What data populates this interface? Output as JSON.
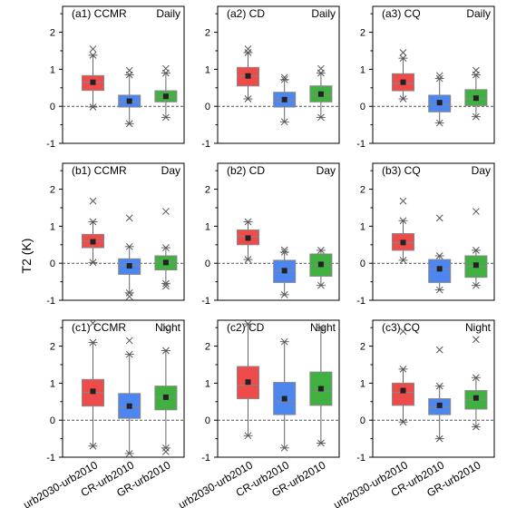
{
  "figure": {
    "ylabel": "T2 (K)",
    "categories": [
      "urb2030-urb2010",
      "CR-urb2010",
      "GR-urb2010"
    ]
  },
  "colors": {
    "urb": "#ee4b4b",
    "cr": "#4c86ee",
    "gr": "#40b040"
  },
  "chart_data": [
    {
      "type": "box",
      "panel": "(a1)",
      "region": "CCMR",
      "period": "Daily",
      "ylim": [
        -1,
        2.7
      ],
      "yticks": [
        -1,
        0,
        1,
        2
      ],
      "categories": [
        "urb2030-urb2010",
        "CR-urb2010",
        "GR-urb2010"
      ],
      "boxes": [
        {
          "min": -0.02,
          "q1": 0.43,
          "median": 0.65,
          "q3": 0.83,
          "max": 1.38,
          "mean": 0.65,
          "p1": -0.02,
          "p99": 1.38,
          "outlier_max": 1.55
        },
        {
          "min": -0.47,
          "q1": -0.02,
          "median": 0.12,
          "q3": 0.3,
          "max": 0.85,
          "mean": 0.14,
          "p1": -0.47,
          "p99": 0.85,
          "outlier_max": 0.97
        },
        {
          "min": -0.3,
          "q1": 0.12,
          "median": 0.25,
          "q3": 0.42,
          "max": 0.9,
          "mean": 0.27,
          "p1": -0.3,
          "p99": 0.9,
          "outlier_max": 1.02
        }
      ]
    },
    {
      "type": "box",
      "panel": "(a2)",
      "region": "CD",
      "period": "Daily",
      "ylim": [
        -1,
        2.7
      ],
      "yticks": [
        -1,
        0,
        1,
        2
      ],
      "categories": [
        "urb2030-urb2010",
        "CR-urb2010",
        "GR-urb2010"
      ],
      "boxes": [
        {
          "min": 0.2,
          "q1": 0.55,
          "median": 0.82,
          "q3": 1.05,
          "max": 1.45,
          "mean": 0.82,
          "p1": 0.2,
          "p99": 1.45,
          "outlier_max": 1.55
        },
        {
          "min": -0.42,
          "q1": -0.02,
          "median": 0.15,
          "q3": 0.38,
          "max": 0.72,
          "mean": 0.18,
          "p1": -0.42,
          "p99": 0.72,
          "outlier_max": 0.78
        },
        {
          "min": -0.3,
          "q1": 0.12,
          "median": 0.3,
          "q3": 0.55,
          "max": 0.9,
          "mean": 0.33,
          "p1": -0.3,
          "p99": 0.9,
          "outlier_max": 1.02
        }
      ]
    },
    {
      "type": "box",
      "panel": "(a3)",
      "region": "CQ",
      "period": "Daily",
      "ylim": [
        -1,
        2.7
      ],
      "yticks": [
        -1,
        0,
        1,
        2
      ],
      "categories": [
        "urb2030-urb2010",
        "CR-urb2010",
        "GR-urb2010"
      ],
      "boxes": [
        {
          "min": 0.2,
          "q1": 0.42,
          "median": 0.62,
          "q3": 0.88,
          "max": 1.3,
          "mean": 0.65,
          "p1": 0.2,
          "p99": 1.3,
          "outlier_max": 1.45
        },
        {
          "min": -0.45,
          "q1": -0.15,
          "median": 0.05,
          "q3": 0.3,
          "max": 0.75,
          "mean": 0.1,
          "p1": -0.45,
          "p99": 0.75,
          "outlier_max": 0.83
        },
        {
          "min": -0.28,
          "q1": 0.02,
          "median": 0.2,
          "q3": 0.45,
          "max": 0.85,
          "mean": 0.22,
          "p1": -0.28,
          "p99": 0.85,
          "outlier_max": 0.97
        }
      ]
    },
    {
      "type": "box",
      "panel": "(b1)",
      "region": "CCMR",
      "period": "Day",
      "ylim": [
        -1,
        2.7
      ],
      "yticks": [
        -1,
        0,
        1,
        2
      ],
      "categories": [
        "urb2030-urb2010",
        "CR-urb2010",
        "GR-urb2010"
      ],
      "boxes": [
        {
          "min": 0.02,
          "q1": 0.42,
          "median": 0.6,
          "q3": 0.78,
          "max": 1.12,
          "mean": 0.58,
          "p1": 0.02,
          "p99": 1.12,
          "outlier_max": 1.68
        },
        {
          "min": -0.8,
          "q1": -0.3,
          "median": -0.05,
          "q3": 0.12,
          "max": 0.45,
          "mean": -0.07,
          "p1": -0.8,
          "p99": 0.45,
          "outlier_min": -0.9,
          "outlier_max": 1.22
        },
        {
          "min": -0.55,
          "q1": -0.18,
          "median": 0.05,
          "q3": 0.2,
          "max": 0.42,
          "mean": 0.02,
          "p1": -0.55,
          "p99": 0.42,
          "outlier_min": -0.62,
          "outlier_max": 1.4
        }
      ]
    },
    {
      "type": "box",
      "panel": "(b2)",
      "region": "CD",
      "period": "Day",
      "ylim": [
        -1,
        2.7
      ],
      "yticks": [
        -1,
        0,
        1,
        2
      ],
      "categories": [
        "urb2030-urb2010",
        "CR-urb2010",
        "GR-urb2010"
      ],
      "boxes": [
        {
          "min": 0.1,
          "q1": 0.5,
          "median": 0.72,
          "q3": 0.9,
          "max": 1.12,
          "mean": 0.68,
          "p1": 0.1,
          "p99": 1.12,
          "outlier_max": 1.15
        },
        {
          "min": -0.85,
          "q1": -0.52,
          "median": -0.2,
          "q3": 0.08,
          "max": 0.3,
          "mean": -0.2,
          "p1": -0.85,
          "p99": 0.3,
          "outlier_max": 0.36
        },
        {
          "min": -0.6,
          "q1": -0.35,
          "median": -0.05,
          "q3": 0.25,
          "max": 0.35,
          "mean": -0.03,
          "p1": -0.6,
          "p99": 0.35,
          "outlier_max": 0.38
        }
      ]
    },
    {
      "type": "box",
      "panel": "(b3)",
      "region": "CQ",
      "period": "Day",
      "ylim": [
        -1,
        2.7
      ],
      "yticks": [
        -1,
        0,
        1,
        2
      ],
      "categories": [
        "urb2030-urb2010",
        "CR-urb2010",
        "GR-urb2010"
      ],
      "boxes": [
        {
          "min": 0.08,
          "q1": 0.35,
          "median": 0.55,
          "q3": 0.8,
          "max": 1.15,
          "mean": 0.56,
          "p1": 0.08,
          "p99": 1.15,
          "outlier_max": 1.68
        },
        {
          "min": -0.72,
          "q1": -0.52,
          "median": -0.15,
          "q3": 0.1,
          "max": 0.2,
          "mean": -0.15,
          "p1": -0.72,
          "p99": 0.2,
          "outlier_max": 1.22
        },
        {
          "min": -0.6,
          "q1": -0.38,
          "median": -0.08,
          "q3": 0.2,
          "max": 0.35,
          "mean": -0.05,
          "p1": -0.6,
          "p99": 0.35,
          "outlier_max": 1.4
        }
      ]
    },
    {
      "type": "box",
      "panel": "(c1)",
      "region": "CCMR",
      "period": "Night",
      "ylim": [
        -1,
        2.7
      ],
      "yticks": [
        -1,
        0,
        1,
        2
      ],
      "categories": [
        "urb2030-urb2010",
        "CR-urb2010",
        "GR-urb2010"
      ],
      "boxes": [
        {
          "min": -0.7,
          "q1": 0.38,
          "median": 0.75,
          "q3": 1.1,
          "max": 2.1,
          "mean": 0.78,
          "p1": -0.7,
          "p99": 2.1,
          "outlier_max": 2.62
        },
        {
          "min": -0.9,
          "q1": 0.05,
          "median": 0.35,
          "q3": 0.72,
          "max": 1.78,
          "mean": 0.38,
          "p1": -0.9,
          "p99": 1.78,
          "outlier_max": 2.15
        },
        {
          "min": -0.75,
          "q1": 0.28,
          "median": 0.62,
          "q3": 0.92,
          "max": 1.88,
          "mean": 0.62,
          "p1": -0.75,
          "p99": 1.88,
          "outlier_min": -0.85,
          "outlier_max": 2.5
        }
      ]
    },
    {
      "type": "box",
      "panel": "(c2)",
      "region": "CD",
      "period": "Night",
      "ylim": [
        -1,
        2.7
      ],
      "yticks": [
        -1,
        0,
        1,
        2
      ],
      "categories": [
        "urb2030-urb2010",
        "CR-urb2010",
        "GR-urb2010"
      ],
      "boxes": [
        {
          "min": -0.42,
          "q1": 0.58,
          "median": 0.95,
          "q3": 1.45,
          "max": 2.6,
          "mean": 1.03,
          "p1": -0.42,
          "p99": 2.6,
          "outlier_max": 2.65
        },
        {
          "min": -0.75,
          "q1": 0.15,
          "median": 0.5,
          "q3": 1.02,
          "max": 2.12,
          "mean": 0.58,
          "p1": -0.75,
          "p99": 2.12,
          "outlier_max": 2.15
        },
        {
          "min": -0.62,
          "q1": 0.4,
          "median": 0.78,
          "q3": 1.3,
          "max": 2.5,
          "mean": 0.85,
          "p1": -0.62,
          "p99": 2.5,
          "outlier_max": 2.52
        }
      ]
    },
    {
      "type": "box",
      "panel": "(c3)",
      "region": "CQ",
      "period": "Night",
      "ylim": [
        -1,
        2.7
      ],
      "yticks": [
        -1,
        0,
        1,
        2
      ],
      "categories": [
        "urb2030-urb2010",
        "CR-urb2010",
        "GR-urb2010"
      ],
      "boxes": [
        {
          "min": -0.05,
          "q1": 0.4,
          "median": 0.75,
          "q3": 1.0,
          "max": 1.38,
          "mean": 0.8,
          "p1": -0.05,
          "p99": 1.38,
          "outlier_max": 2.4
        },
        {
          "min": -0.5,
          "q1": 0.15,
          "median": 0.35,
          "q3": 0.58,
          "max": 0.92,
          "mean": 0.4,
          "p1": -0.5,
          "p99": 0.92,
          "outlier_max": 1.9
        },
        {
          "min": -0.18,
          "q1": 0.3,
          "median": 0.55,
          "q3": 0.8,
          "max": 1.15,
          "mean": 0.6,
          "p1": -0.18,
          "p99": 1.15,
          "outlier_max": 2.18
        }
      ]
    }
  ]
}
